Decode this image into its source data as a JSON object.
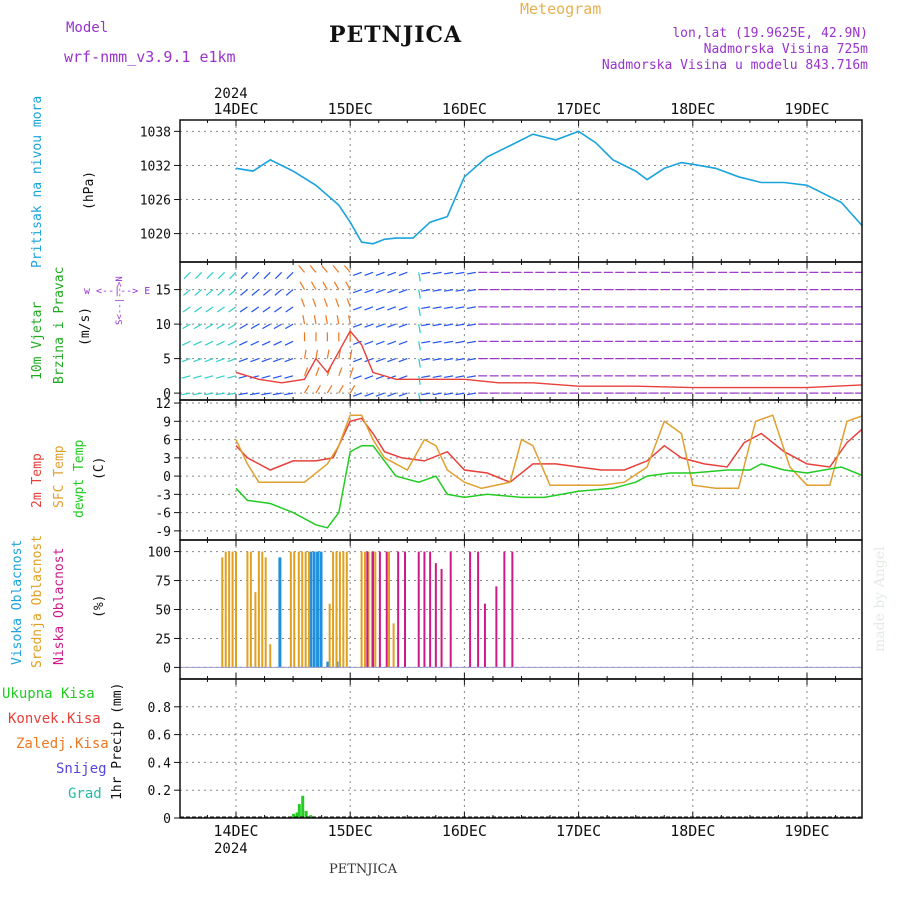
{
  "header": {
    "model_label": "Model",
    "model_name": "wrf-nmm_v3.9.1 e1km",
    "station": "PETNJICA",
    "product": "Meteogram",
    "location": "lon,lat (19.9625E, 42.9N)",
    "elevation": "Nadmorska Visina 725m",
    "model_elevation": "Nadmorska Visina u modelu 843.716m",
    "footer_station": "PETNJICA",
    "signature": "made by Angel"
  },
  "colors": {
    "pressure": "#1aa3dd",
    "temp2m": "#e8403a",
    "sfc": "#e0a030",
    "dewpt": "#22cc22",
    "high_cloud": "#1e90e0",
    "mid_cloud": "#e0a020",
    "low_cloud": "#cc1a88",
    "precip_total": "#22cc22",
    "precip_conv": "#e8403a",
    "precip_frz": "#ee7722",
    "snow": "#5544dd",
    "grad": "#22bbaa",
    "wind_label": "#22aa22",
    "compass": "#9933cc",
    "header_purple": "#9933cc",
    "header_orange": "#e8b050"
  },
  "time_axis": {
    "top_year": "2024",
    "bottom_year": "2024",
    "day_labels": [
      "14DEC",
      "15DEC",
      "16DEC",
      "17DEC",
      "18DEC",
      "19DEC"
    ]
  },
  "labels": {
    "pressure": [
      "Pritisak na nivou mora",
      "(hPa)"
    ],
    "wind": [
      "10m Vjetar",
      "Brzina i Pravac",
      "(m/s)"
    ],
    "compass": "w <--|--> E",
    "compass_side": "S<--|-->N",
    "temp": [
      "2m Temp",
      "SFC Temp",
      "dewpt Temp",
      "(C)"
    ],
    "cloud": [
      "Visoka Oblacnost",
      "Srednja Oblacnost",
      "Niska Oblacnost",
      "(%)"
    ],
    "precip_legend": [
      "Ukupna Kisa",
      "Konvek.Kisa",
      "Zaledj.Kisa",
      "Snijeg",
      "Grad"
    ],
    "precip_unit": "1hr Precip (mm)"
  },
  "chart_data": [
    {
      "type": "line",
      "panel": "pressure",
      "ylabel": "Pritisak na nivou mora (hPa)",
      "ylim": [
        1015,
        1040
      ],
      "yticks": [
        1020,
        1026,
        1032,
        1038
      ],
      "grid": true,
      "series": [
        {
          "name": "Pritisak na nivou mora",
          "x": [
            0,
            0.15,
            0.3,
            0.5,
            0.7,
            0.9,
            1.0,
            1.1,
            1.2,
            1.3,
            1.4,
            1.55,
            1.7,
            1.85,
            2.0,
            2.2,
            2.4,
            2.6,
            2.8,
            3.0,
            3.15,
            3.3,
            3.5,
            3.6,
            3.75,
            3.9,
            4.0,
            4.2,
            4.4,
            4.6,
            4.8,
            5.0,
            5.3,
            5.5
          ],
          "y": [
            1031.5,
            1031,
            1033,
            1031,
            1028.5,
            1025,
            1022,
            1018.5,
            1018.2,
            1019,
            1019.2,
            1019.2,
            1022,
            1023,
            1030,
            1033.5,
            1035.5,
            1037.5,
            1036.5,
            1038,
            1036,
            1033,
            1031,
            1029.5,
            1031.5,
            1032.5,
            1032.2,
            1031.5,
            1030,
            1029,
            1029,
            1028.5,
            1025.5,
            1021
          ]
        }
      ]
    },
    {
      "type": "line",
      "panel": "wind",
      "ylabel": "10m Vjetar Brzina i Pravac (m/s)",
      "ylim": [
        -1,
        19
      ],
      "yticks": [
        0,
        5,
        10,
        15
      ],
      "grid": true,
      "series": [
        {
          "name": "10m Vjetar",
          "x": [
            0,
            0.2,
            0.4,
            0.6,
            0.7,
            0.8,
            0.9,
            1.0,
            1.1,
            1.2,
            1.4,
            1.7,
            2.0,
            2.3,
            2.6,
            3.0,
            3.5,
            4.0,
            4.5,
            5.0,
            5.5
          ],
          "y": [
            3,
            2,
            1.5,
            2,
            5,
            3,
            6,
            9,
            7,
            3,
            2,
            2,
            2,
            1.5,
            1.5,
            1,
            1,
            0.8,
            0.8,
            0.8,
            1.2
          ]
        }
      ]
    },
    {
      "type": "line",
      "panel": "temperature",
      "ylabel": "(C)",
      "ylim": [
        -10.5,
        12.5
      ],
      "yticks": [
        -9,
        -6,
        -3,
        0,
        3,
        6,
        9,
        12
      ],
      "grid": true,
      "series": [
        {
          "name": "2m Temp",
          "x": [
            0,
            0.1,
            0.3,
            0.5,
            0.7,
            0.85,
            1.0,
            1.1,
            1.2,
            1.3,
            1.45,
            1.65,
            1.85,
            2.0,
            2.2,
            2.4,
            2.6,
            2.8,
            3.0,
            3.2,
            3.4,
            3.6,
            3.75,
            3.9,
            4.1,
            4.3,
            4.45,
            4.6,
            4.8,
            5.0,
            5.2,
            5.35,
            5.5
          ],
          "y": [
            5,
            3,
            1,
            2.5,
            2.5,
            3,
            9,
            9.5,
            7,
            4,
            3,
            2.5,
            4,
            1,
            0.5,
            -1,
            2,
            2,
            1.5,
            1,
            1,
            2.5,
            5,
            3,
            2,
            1.5,
            5.5,
            7,
            4,
            2,
            1.5,
            5.5,
            8
          ]
        },
        {
          "name": "SFC Temp",
          "x": [
            0,
            0.1,
            0.2,
            0.4,
            0.6,
            0.8,
            0.9,
            1.0,
            1.1,
            1.2,
            1.3,
            1.5,
            1.65,
            1.75,
            1.85,
            2.0,
            2.15,
            2.4,
            2.5,
            2.6,
            2.75,
            2.85,
            3.0,
            3.2,
            3.4,
            3.6,
            3.75,
            3.9,
            4.0,
            4.2,
            4.4,
            4.55,
            4.7,
            4.85,
            5.0,
            5.2,
            5.35,
            5.5
          ],
          "y": [
            6,
            2,
            -1,
            -1,
            -1,
            2,
            5,
            10,
            10,
            6,
            3,
            1,
            6,
            5,
            1,
            -1,
            -2,
            -1,
            6,
            5,
            -1.5,
            -1.5,
            -1.5,
            -1.5,
            -1,
            1.5,
            9,
            7,
            -1.5,
            -2,
            -2,
            9,
            10,
            1.5,
            -1.5,
            -1.5,
            9,
            10
          ]
        },
        {
          "name": "dewpt Temp",
          "x": [
            0,
            0.1,
            0.3,
            0.5,
            0.7,
            0.8,
            0.9,
            1.0,
            1.1,
            1.2,
            1.4,
            1.6,
            1.75,
            1.85,
            2.0,
            2.2,
            2.5,
            2.7,
            3.0,
            3.3,
            3.5,
            3.6,
            3.8,
            4.0,
            4.3,
            4.5,
            4.6,
            4.8,
            5.0,
            5.3,
            5.5
          ],
          "y": [
            -2,
            -4,
            -4.5,
            -6,
            -8,
            -8.5,
            -6,
            4,
            5,
            5,
            0,
            -1,
            0,
            -3,
            -3.5,
            -3,
            -3.5,
            -3.5,
            -2.5,
            -2,
            -1,
            0,
            0.5,
            0.5,
            1,
            1,
            2,
            1,
            0.5,
            1.5,
            0
          ]
        }
      ]
    },
    {
      "type": "bar",
      "panel": "cloud",
      "ylabel": "(%)",
      "ylim": [
        -10,
        110
      ],
      "yticks": [
        0,
        25,
        50,
        75,
        100
      ],
      "grid": true,
      "series": [
        {
          "name": "Visoka Oblacnost",
          "x": [
            0.38,
            0.65,
            0.68,
            0.71,
            0.74,
            0.8,
            0.88
          ],
          "values": [
            95,
            100,
            100,
            100,
            100,
            5,
            5
          ]
        },
        {
          "name": "Srednja Oblacnost",
          "x": [
            -0.12,
            -0.09,
            -0.06,
            -0.03,
            0.0,
            0.1,
            0.13,
            0.17,
            0.2,
            0.23,
            0.26,
            0.3,
            0.48,
            0.51,
            0.55,
            0.58,
            0.61,
            0.64,
            0.82,
            0.85,
            0.88,
            0.91,
            0.94,
            0.97,
            1.1,
            1.13,
            1.16,
            1.19,
            1.22,
            1.34,
            1.38
          ],
          "values": [
            95,
            100,
            100,
            100,
            100,
            100,
            100,
            65,
            100,
            100,
            95,
            20,
            100,
            100,
            100,
            100,
            100,
            100,
            55,
            100,
            100,
            100,
            100,
            100,
            100,
            100,
            100,
            100,
            100,
            100,
            38
          ]
        },
        {
          "name": "Niska Oblacnost",
          "x": [
            1.15,
            1.2,
            1.26,
            1.32,
            1.42,
            1.48,
            1.6,
            1.65,
            1.7,
            1.75,
            1.8,
            1.88,
            2.05,
            2.12,
            2.18,
            2.28,
            2.35,
            2.42
          ],
          "values": [
            100,
            100,
            100,
            100,
            100,
            100,
            100,
            100,
            100,
            90,
            85,
            100,
            100,
            100,
            55,
            70,
            100,
            100
          ]
        }
      ]
    },
    {
      "type": "bar",
      "panel": "precip",
      "ylabel": "1hr Precip (mm)",
      "ylim": [
        0,
        1
      ],
      "yticks": [
        0,
        0.2,
        0.4,
        0.6,
        0.8
      ],
      "grid": true,
      "series": [
        {
          "name": "Ukupna Kisa",
          "x": [
            0.5,
            0.53,
            0.55,
            0.58,
            0.61,
            0.65
          ],
          "values": [
            0.03,
            0.04,
            0.1,
            0.16,
            0.05,
            0.02
          ]
        }
      ]
    }
  ]
}
